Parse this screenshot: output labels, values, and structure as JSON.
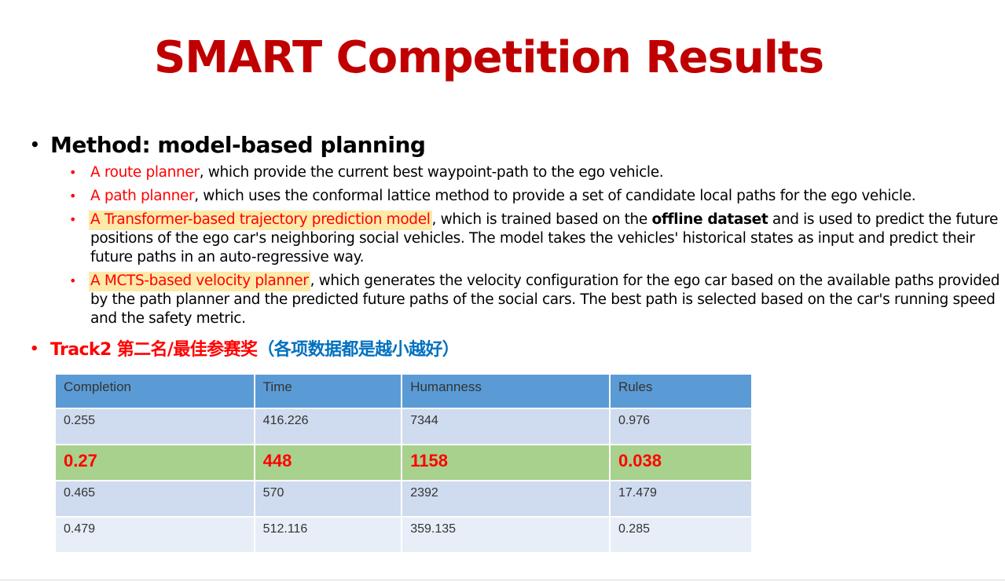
{
  "title": "SMART Competition Results",
  "method": {
    "heading": "Method: model-based planning",
    "items": [
      {
        "lead": "A route planner",
        "rest": ", which provide the current best waypoint-path to the ego vehicle."
      },
      {
        "lead": "A path planner",
        "rest": ", which uses the conformal lattice method to provide a set of candidate local paths for the ego vehicle."
      },
      {
        "lead": "A Transformer-based trajectory prediction model",
        "rest_before": ", which is trained based on the ",
        "bold": "offline dataset",
        "rest_after": " and is used to predict the future positions of the ego car's neighboring social vehicles. The model takes the vehicles' historical states as input and predict their future paths in an auto-regressive way."
      },
      {
        "lead": "A MCTS-based velocity planner",
        "rest": ", which generates the velocity configuration for the ego car based on the available paths provided by the path planner and the predicted future paths of the social cars. The best path is selected based on the car's running speed and the safety metric."
      }
    ]
  },
  "track": {
    "label_red": "Track2 第二名/最佳参赛奖",
    "label_blue": "（各项数据都是越小越好）"
  },
  "table": {
    "headers": [
      "Completion",
      "Time",
      "Humanness",
      "Rules"
    ],
    "rows": [
      [
        "0.255",
        "416.226",
        "7344",
        "0.976"
      ],
      [
        "0.27",
        "448",
        "1158",
        "0.038"
      ],
      [
        "0.465",
        "570",
        "2392",
        "17.479"
      ],
      [
        "0.479",
        "512.116",
        "359.135",
        "0.285"
      ]
    ],
    "highlight_row": 1
  },
  "colors": {
    "title": "#c00000",
    "accent_red": "#ff0000",
    "accent_blue": "#0070c0",
    "highlight_bg": "#fde9a9",
    "table_header": "#5b9bd5",
    "table_row_dark": "#cfdbee",
    "table_row_light": "#e8eef8",
    "table_row_highlight": "#a9d18e"
  }
}
